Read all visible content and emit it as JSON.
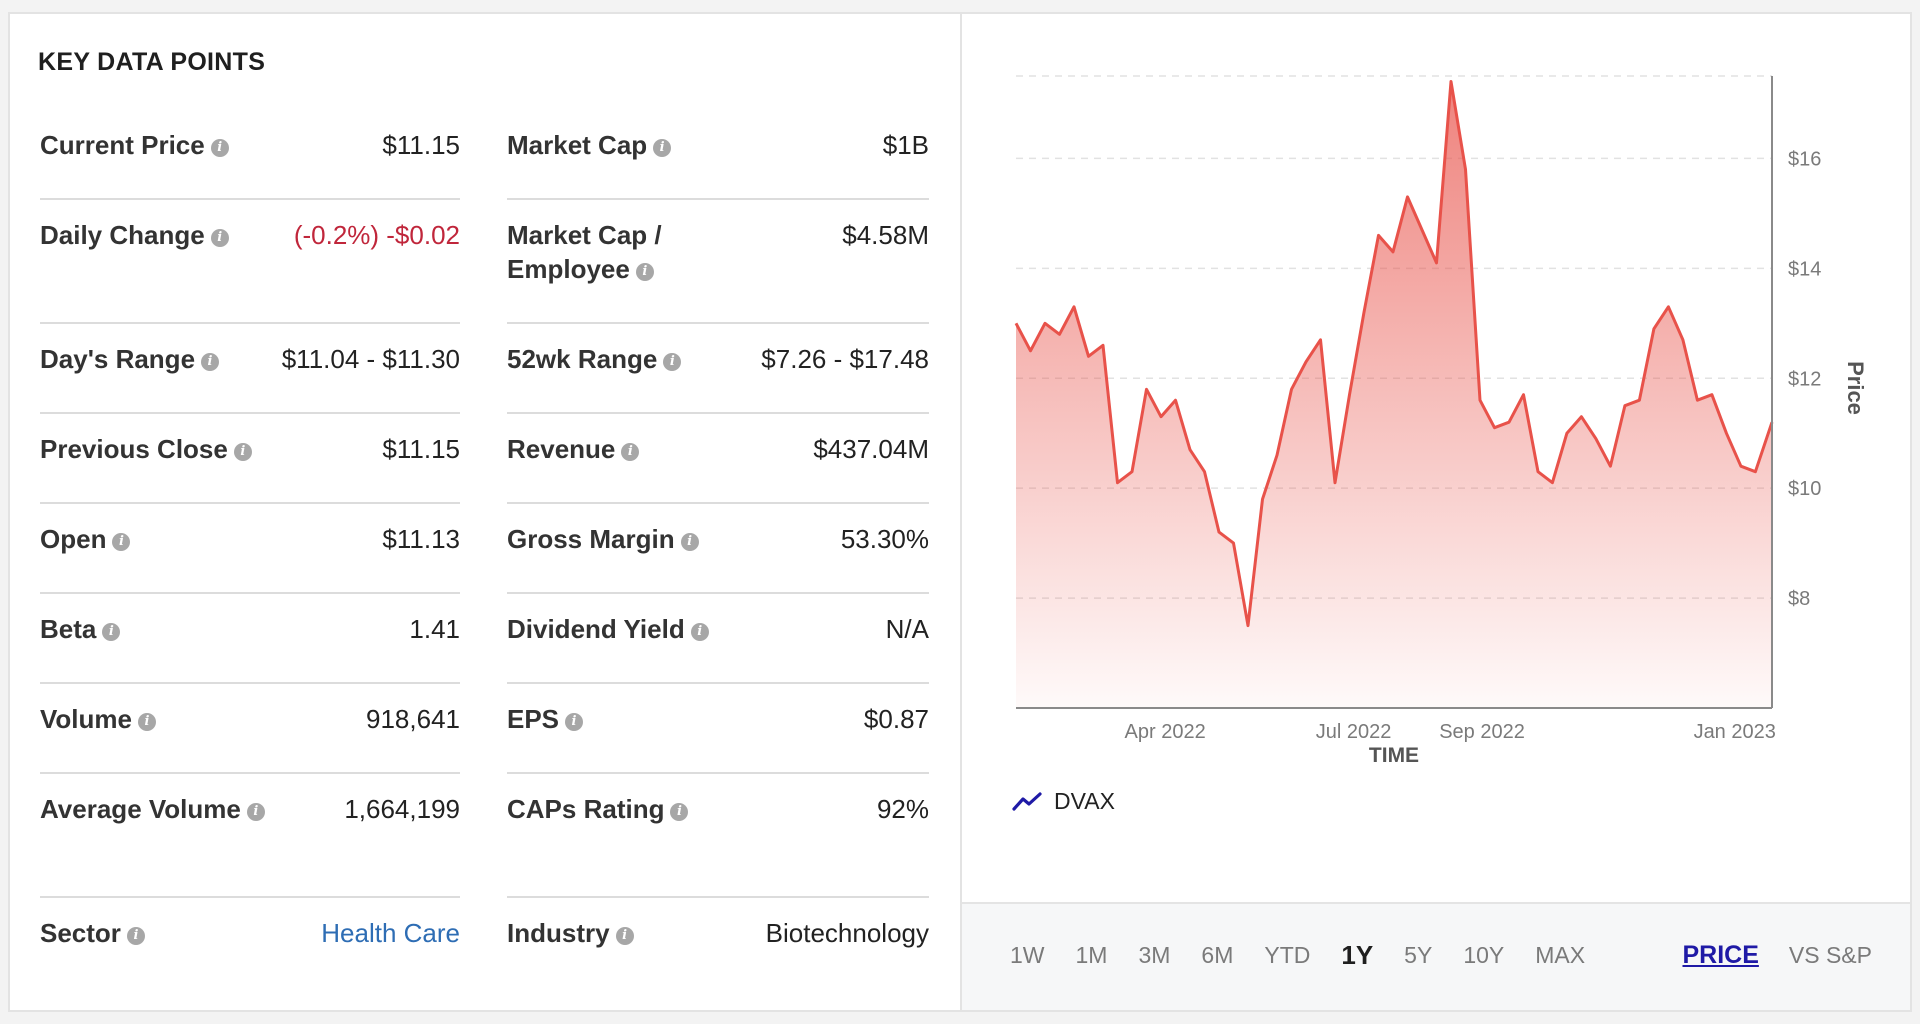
{
  "title": "KEY DATA POINTS",
  "left_column": [
    {
      "label": "Current Price",
      "value": "$11.15",
      "style": "normal"
    },
    {
      "label": "Daily Change",
      "value": "(-0.2%) -$0.02",
      "style": "neg"
    },
    {
      "label": "Day's Range",
      "value": "$11.04 - $11.30",
      "style": "normal"
    },
    {
      "label": "Previous Close",
      "value": "$11.15",
      "style": "normal"
    },
    {
      "label": "Open",
      "value": "$11.13",
      "style": "normal"
    },
    {
      "label": "Beta",
      "value": "1.41",
      "style": "normal"
    },
    {
      "label": "Volume",
      "value": "918,641",
      "style": "normal"
    },
    {
      "label": "Average Volume",
      "value": "1,664,199",
      "style": "normal"
    },
    {
      "label": "Sector",
      "value": "Health Care",
      "style": "link"
    }
  ],
  "right_column": [
    {
      "label": "Market Cap",
      "value": "$1B",
      "style": "normal"
    },
    {
      "label": "Market Cap / Employee",
      "value": "$4.58M",
      "style": "normal"
    },
    {
      "label": "52wk Range",
      "value": "$7.26 - $17.48",
      "style": "normal"
    },
    {
      "label": "Revenue",
      "value": "$437.04M",
      "style": "normal"
    },
    {
      "label": "Gross Margin",
      "value": "53.30%",
      "style": "normal"
    },
    {
      "label": "Dividend Yield",
      "value": "N/A",
      "style": "normal"
    },
    {
      "label": "EPS",
      "value": "$0.87",
      "style": "normal"
    },
    {
      "label": "CAPs Rating",
      "value": "92%",
      "style": "normal"
    },
    {
      "label": "Industry",
      "value": "Biotechnology",
      "style": "normal"
    }
  ],
  "info_icon_glyph": "i",
  "chart_data": {
    "type": "area",
    "xlabel": "TIME",
    "ylabel": "Price",
    "x_ticks": [
      "Apr 2022",
      "Jul 2022",
      "Sep 2022",
      "Jan 2023"
    ],
    "y_ticks": [
      "$8",
      "$10",
      "$12",
      "$14",
      "$16"
    ],
    "y_tick_values": [
      8,
      10,
      12,
      14,
      16
    ],
    "ylim": [
      6.0,
      17.5
    ],
    "x_range": [
      "2022-01-19",
      "2023-01-19"
    ],
    "grid": "horizontal dashed",
    "color": "#e8524a",
    "series": [
      {
        "name": "DVAX",
        "x": [
          "2022-01-19",
          "2022-01-26",
          "2022-02-02",
          "2022-02-09",
          "2022-02-16",
          "2022-02-23",
          "2022-03-02",
          "2022-03-09",
          "2022-03-16",
          "2022-03-23",
          "2022-03-30",
          "2022-04-06",
          "2022-04-13",
          "2022-04-20",
          "2022-04-27",
          "2022-05-04",
          "2022-05-11",
          "2022-05-18",
          "2022-05-25",
          "2022-06-01",
          "2022-06-08",
          "2022-06-15",
          "2022-06-22",
          "2022-06-29",
          "2022-07-06",
          "2022-07-13",
          "2022-07-20",
          "2022-07-27",
          "2022-08-03",
          "2022-08-10",
          "2022-08-17",
          "2022-08-24",
          "2022-08-31",
          "2022-09-07",
          "2022-09-14",
          "2022-09-21",
          "2022-09-28",
          "2022-10-05",
          "2022-10-12",
          "2022-10-19",
          "2022-10-26",
          "2022-11-02",
          "2022-11-09",
          "2022-11-16",
          "2022-11-23",
          "2022-11-30",
          "2022-12-07",
          "2022-12-14",
          "2022-12-21",
          "2022-12-28",
          "2023-01-04",
          "2023-01-11",
          "2023-01-19"
        ],
        "values": [
          13.0,
          12.5,
          13.0,
          12.8,
          13.3,
          12.4,
          12.6,
          10.1,
          10.3,
          11.8,
          11.3,
          11.6,
          10.7,
          10.3,
          9.2,
          9.0,
          7.5,
          9.8,
          10.6,
          11.8,
          12.3,
          12.7,
          10.1,
          11.7,
          13.2,
          14.6,
          14.3,
          15.3,
          14.7,
          14.1,
          17.4,
          15.8,
          11.6,
          11.1,
          11.2,
          11.7,
          10.3,
          10.1,
          11.0,
          11.3,
          10.9,
          10.4,
          11.5,
          11.6,
          12.9,
          13.3,
          12.7,
          11.6,
          11.7,
          11.0,
          10.4,
          10.3,
          11.2
        ]
      }
    ]
  },
  "legend": {
    "label": "DVAX",
    "icon": "trend-line-icon",
    "color": "#1f1aa6"
  },
  "periods": [
    "1W",
    "1M",
    "3M",
    "6M",
    "YTD",
    "1Y",
    "5Y",
    "10Y",
    "MAX"
  ],
  "active_period": "1Y",
  "modes": [
    "PRICE",
    "VS S&P"
  ],
  "active_mode": "PRICE"
}
